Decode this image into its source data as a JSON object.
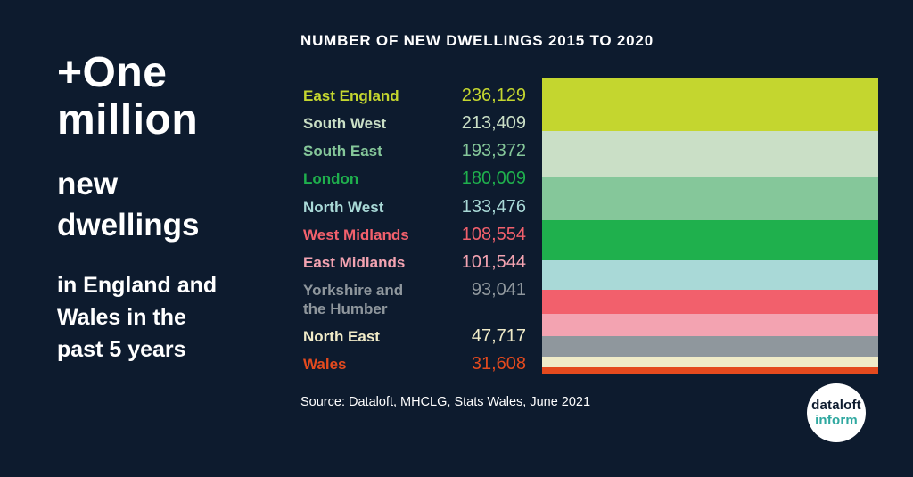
{
  "page": {
    "background": "#0d1b2e"
  },
  "headline": {
    "top": "+One\nmillion",
    "mid": "new\ndwellings",
    "sub": "in England and\nWales in the\npast 5 years"
  },
  "chart_data": {
    "type": "bar",
    "stacked": true,
    "title": "NUMBER OF NEW DWELLINGS 2015 TO 2020",
    "source": "Source: Dataloft, MHCLG, Stats Wales, June 2021",
    "legend_position": "left",
    "regions": [
      {
        "name": "East England",
        "value": 236129,
        "value_label": "236,129",
        "color": "#c4d62f"
      },
      {
        "name": "South West",
        "value": 213409,
        "value_label": "213,409",
        "color": "#cadfc6"
      },
      {
        "name": "South East",
        "value": 193372,
        "value_label": "193,372",
        "color": "#85c79a"
      },
      {
        "name": "London",
        "value": 180009,
        "value_label": "180,009",
        "color": "#1fb04d"
      },
      {
        "name": "North West",
        "value": 133476,
        "value_label": "133,476",
        "color": "#a9d9d7"
      },
      {
        "name": "West Midlands",
        "value": 108554,
        "value_label": "108,554",
        "color": "#f2606c"
      },
      {
        "name": "East Midlands",
        "value": 101544,
        "value_label": "101,544",
        "color": "#f3a3b1"
      },
      {
        "name": "Yorkshire and\nthe Humber",
        "value": 93041,
        "value_label": "93,041",
        "color": "#8f979d"
      },
      {
        "name": "North East",
        "value": 47717,
        "value_label": "47,717",
        "color": "#f0ebc8"
      },
      {
        "name": "Wales",
        "value": 31608,
        "value_label": "31,608",
        "color": "#e44a1e"
      }
    ]
  },
  "logo": {
    "line1": "dataloft",
    "line2": "inform"
  }
}
